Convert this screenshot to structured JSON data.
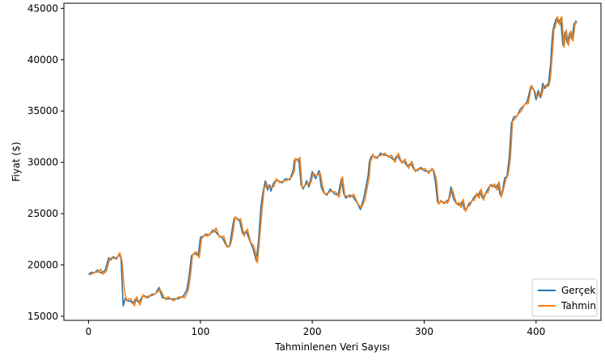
{
  "chart_data": {
    "type": "line",
    "title": "",
    "xlabel": "Tahminlenen Veri Sayısı",
    "ylabel": "Fiyat ($)",
    "xlim": [
      -22,
      458
    ],
    "ylim": [
      14600,
      45500
    ],
    "xticks": [
      0,
      100,
      200,
      300,
      400
    ],
    "yticks": [
      15000,
      20000,
      25000,
      30000,
      35000,
      40000,
      45000
    ],
    "grid": false,
    "legend_position": "lower right",
    "series": [
      {
        "name": "Gerçek",
        "color": "#1f77b4",
        "x": [
          0,
          3,
          5,
          8,
          10,
          12,
          15,
          18,
          20,
          22,
          25,
          27,
          29,
          31,
          33,
          35,
          37,
          40,
          42,
          45,
          48,
          50,
          53,
          56,
          60,
          63,
          66,
          68,
          70,
          75,
          80,
          85,
          88,
          90,
          92,
          95,
          98,
          100,
          103,
          105,
          108,
          111,
          113,
          116,
          120,
          123,
          126,
          128,
          130,
          132,
          135,
          138,
          141,
          144,
          147,
          150,
          152,
          154,
          156,
          158,
          160,
          162,
          163,
          165,
          167,
          170,
          173,
          176,
          180,
          183,
          184,
          186,
          188,
          190,
          192,
          195,
          197,
          200,
          203,
          206,
          208,
          210,
          213,
          216,
          220,
          223,
          226,
          228,
          230,
          233,
          236,
          240,
          243,
          246,
          250,
          251,
          252,
          253,
          255,
          258,
          261,
          264,
          267,
          270,
          273,
          276,
          279,
          282,
          285,
          288,
          291,
          294,
          297,
          300,
          303,
          306,
          308,
          310,
          312,
          314,
          316,
          318,
          320,
          322,
          324,
          326,
          328,
          330,
          332,
          334,
          336,
          338,
          340,
          342,
          344,
          346,
          348,
          350,
          352,
          354,
          356,
          358,
          360,
          362,
          364,
          366,
          368,
          370,
          372,
          374,
          376,
          378,
          380,
          383,
          386,
          389,
          392,
          395,
          398,
          400,
          402,
          404,
          406,
          408,
          410,
          411,
          412,
          413,
          414,
          415,
          416,
          418,
          420,
          422,
          424,
          426,
          428,
          430,
          432,
          434,
          436
        ],
        "values": [
          19100,
          19300,
          19200,
          19500,
          19300,
          19200,
          19500,
          20700,
          20500,
          20800,
          20600,
          21000,
          20700,
          16000,
          16800,
          16500,
          16500,
          16200,
          16700,
          16300,
          16900,
          17000,
          16800,
          17100,
          17200,
          17800,
          16800,
          16800,
          16700,
          16700,
          16700,
          17000,
          17600,
          19000,
          20900,
          21100,
          20900,
          22700,
          22800,
          23000,
          22900,
          23400,
          23300,
          22900,
          22600,
          21900,
          21800,
          23200,
          24500,
          24600,
          24300,
          23000,
          23300,
          22400,
          21600,
          20400,
          22400,
          25600,
          27100,
          28200,
          27300,
          27800,
          27200,
          27900,
          28200,
          28200,
          28000,
          28400,
          28300,
          29300,
          30200,
          30300,
          30300,
          27800,
          27400,
          28200,
          27600,
          29100,
          28400,
          29200,
          27600,
          27100,
          26800,
          27400,
          26900,
          26800,
          28400,
          27000,
          26500,
          26800,
          26700,
          26100,
          25400,
          26500,
          28800,
          30000,
          30400,
          30600,
          30600,
          30400,
          30900,
          30700,
          30700,
          30500,
          30200,
          30700,
          30100,
          30100,
          29600,
          29900,
          29300,
          29200,
          29500,
          29200,
          29100,
          29200,
          29300,
          28100,
          26100,
          26100,
          26200,
          26000,
          26200,
          26400,
          27600,
          26500,
          26100,
          25900,
          25800,
          26200,
          25400,
          25500,
          26000,
          26100,
          26500,
          26800,
          26700,
          27200,
          26500,
          26800,
          27200,
          27600,
          27800,
          27700,
          27500,
          27900,
          26800,
          27200,
          28500,
          28600,
          30500,
          33800,
          34400,
          34500,
          35200,
          35500,
          35900,
          37300,
          37100,
          36100,
          37000,
          36300,
          37700,
          37200,
          37600,
          37500,
          38600,
          39600,
          41400,
          42800,
          43300,
          44000,
          43600,
          44000,
          41400,
          42700,
          41600,
          42600,
          42000,
          43500,
          43800
        ]
      },
      {
        "name": "Tahmin",
        "color": "#ff7f0e",
        "x": [
          1,
          4,
          6,
          9,
          11,
          13,
          16,
          19,
          21,
          23,
          26,
          28,
          30,
          32,
          34,
          36,
          38,
          41,
          43,
          46,
          49,
          51,
          54,
          57,
          61,
          64,
          67,
          69,
          71,
          76,
          81,
          86,
          89,
          91,
          93,
          96,
          99,
          101,
          104,
          106,
          109,
          112,
          114,
          117,
          121,
          124,
          127,
          129,
          131,
          133,
          136,
          139,
          142,
          145,
          148,
          151,
          153,
          155,
          157,
          159,
          161,
          163,
          164,
          166,
          168,
          171,
          174,
          177,
          181,
          184,
          185,
          187,
          189,
          191,
          193,
          196,
          198,
          201,
          204,
          207,
          209,
          211,
          214,
          217,
          221,
          224,
          227,
          229,
          231,
          234,
          237,
          241,
          244,
          247,
          251,
          252,
          253,
          254,
          256,
          259,
          262,
          265,
          268,
          271,
          274,
          277,
          280,
          283,
          286,
          289,
          292,
          295,
          298,
          301,
          304,
          307,
          309,
          311,
          313,
          315,
          317,
          319,
          321,
          323,
          325,
          327,
          329,
          331,
          333,
          335,
          337,
          339,
          341,
          343,
          345,
          347,
          349,
          351,
          353,
          355,
          357,
          359,
          361,
          363,
          365,
          367,
          369,
          371,
          373,
          375,
          377,
          379,
          381,
          384,
          387,
          390,
          393,
          396,
          399,
          401,
          403,
          405,
          407,
          409,
          411,
          412,
          413,
          414,
          415,
          416,
          417,
          419,
          421,
          423,
          425,
          427,
          429,
          431,
          433,
          435,
          437
        ],
        "values": [
          19000,
          19200,
          19300,
          19300,
          19600,
          19100,
          19400,
          20600,
          20700,
          20600,
          20800,
          21200,
          20400,
          17600,
          16500,
          16700,
          16700,
          16000,
          16900,
          16100,
          17100,
          16800,
          17000,
          17000,
          17300,
          17600,
          17000,
          16600,
          16900,
          16500,
          16900,
          16800,
          17500,
          18800,
          21000,
          21300,
          20700,
          22500,
          23000,
          22800,
          23100,
          23200,
          23600,
          22700,
          22800,
          21700,
          22000,
          23000,
          24700,
          24400,
          24500,
          22800,
          23500,
          22200,
          21800,
          20200,
          22700,
          25300,
          27400,
          28000,
          27500,
          27600,
          27500,
          27700,
          28400,
          28000,
          28200,
          28200,
          28500,
          29100,
          30400,
          30100,
          30500,
          27500,
          27700,
          28000,
          27800,
          28900,
          28700,
          29000,
          27800,
          26900,
          27000,
          27200,
          27100,
          26600,
          28600,
          26800,
          26700,
          26600,
          26900,
          25900,
          25600,
          26300,
          28600,
          30200,
          30200,
          30800,
          30400,
          30600,
          30700,
          30900,
          30500,
          30700,
          30000,
          30900,
          29900,
          30300,
          29400,
          30100,
          29100,
          29400,
          29300,
          29400,
          28900,
          29400,
          29100,
          28300,
          25900,
          26300,
          26000,
          26200,
          26000,
          26600,
          27400,
          26700,
          25900,
          26100,
          25600,
          26400,
          25200,
          25700,
          25800,
          26300,
          26300,
          27000,
          26500,
          27400,
          26300,
          27000,
          27000,
          27800,
          27600,
          27900,
          27300,
          28100,
          26600,
          27400,
          28300,
          28800,
          30300,
          34000,
          34200,
          34700,
          35000,
          35700,
          35700,
          37500,
          36900,
          36300,
          36800,
          36500,
          37500,
          37400,
          37400,
          37700,
          38400,
          39800,
          41200,
          43000,
          43100,
          44200,
          43400,
          44200,
          41200,
          42900,
          41400,
          42800,
          41800,
          43600,
          43600
        ]
      }
    ]
  }
}
